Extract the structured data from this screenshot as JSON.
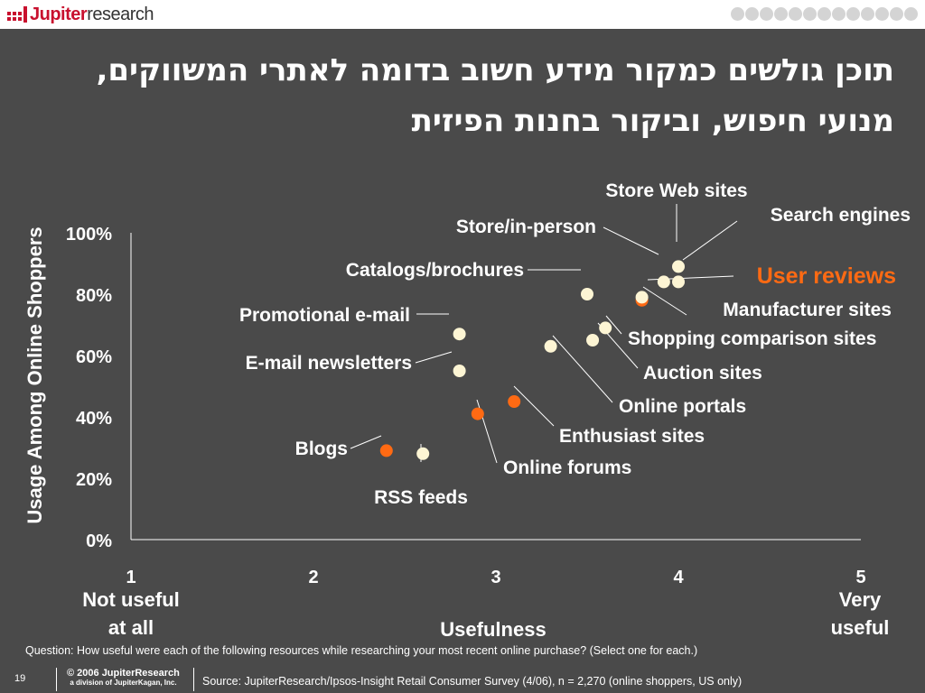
{
  "brand": {
    "logo_main": "Jupiter",
    "logo_sub": "research"
  },
  "title": "תוכן גולשים כמקור מידע חשוב בדומה לאתרי המשווקים, מנועי חיפוש, וביקור בחנות הפיזית",
  "colors": {
    "background": "#4a4a4a",
    "point_default": "#fdf5d4",
    "point_highlight": "#ff6a13",
    "text": "#ffffff"
  },
  "chart_data": {
    "type": "scatter",
    "xlabel": "Usefulness",
    "ylabel": "Usage Among Online Shoppers",
    "xlim": [
      1,
      5
    ],
    "ylim": [
      0,
      100
    ],
    "x_ticks": [
      "1",
      "2",
      "3",
      "4",
      "5"
    ],
    "y_ticks": [
      "0%",
      "20%",
      "40%",
      "60%",
      "80%",
      "100%"
    ],
    "x_end_labels": {
      "left": [
        "Not useful",
        "at all"
      ],
      "right": [
        "Very",
        "useful"
      ]
    },
    "grid": false,
    "points": [
      {
        "label": "Store Web sites",
        "x": 4.0,
        "y": 89,
        "highlight": false
      },
      {
        "label": "Search engines",
        "x": 4.0,
        "y": 84,
        "highlight": false
      },
      {
        "label": "Store/in-person",
        "x": 3.92,
        "y": 84,
        "highlight": false
      },
      {
        "label": "User reviews",
        "x": 3.8,
        "y": 78,
        "highlight": true
      },
      {
        "label": "Catalogs/brochures",
        "x": 3.5,
        "y": 80,
        "highlight": false
      },
      {
        "label": "Manufacturer sites",
        "x": 3.8,
        "y": 79,
        "highlight": false
      },
      {
        "label": "Shopping comparison sites",
        "x": 3.6,
        "y": 69,
        "highlight": false
      },
      {
        "label": "Auction sites",
        "x": 3.53,
        "y": 65,
        "highlight": false
      },
      {
        "label": "Online portals",
        "x": 3.3,
        "y": 63,
        "highlight": false
      },
      {
        "label": "Promotional e-mail",
        "x": 2.8,
        "y": 67,
        "highlight": false
      },
      {
        "label": "E-mail newsletters",
        "x": 2.8,
        "y": 55,
        "highlight": false
      },
      {
        "label": "Enthusiast sites",
        "x": 3.1,
        "y": 45,
        "highlight": true
      },
      {
        "label": "Online forums",
        "x": 2.9,
        "y": 41,
        "highlight": true
      },
      {
        "label": "Blogs",
        "x": 2.4,
        "y": 29,
        "highlight": true
      },
      {
        "label": "RSS feeds",
        "x": 2.6,
        "y": 28,
        "highlight": false
      }
    ]
  },
  "question": "Question: How useful were each of the following resources while researching your most recent online purchase? (Select one for each.)",
  "footer": {
    "slide_number": "19",
    "copyright": "© 2006 JupiterResearch",
    "division": "a division of JupiterKagan, Inc.",
    "source": "Source: JupiterResearch/Ipsos-Insight Retail Consumer Survey (4/06), n = 2,270 (online shoppers, US only)"
  }
}
